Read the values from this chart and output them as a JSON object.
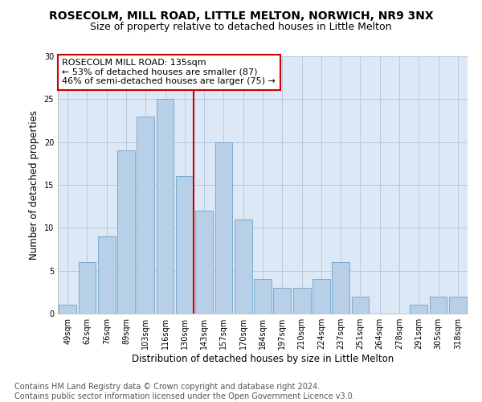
{
  "title": "ROSECOLM, MILL ROAD, LITTLE MELTON, NORWICH, NR9 3NX",
  "subtitle": "Size of property relative to detached houses in Little Melton",
  "xlabel": "Distribution of detached houses by size in Little Melton",
  "ylabel": "Number of detached properties",
  "footer_line1": "Contains HM Land Registry data © Crown copyright and database right 2024.",
  "footer_line2": "Contains public sector information licensed under the Open Government Licence v3.0.",
  "annotation_line1": "ROSECOLM MILL ROAD: 135sqm",
  "annotation_line2": "← 53% of detached houses are smaller (87)",
  "annotation_line3": "46% of semi-detached houses are larger (75) →",
  "bar_color": "#b8cfe8",
  "bar_edge_color": "#7aaad0",
  "vline_color": "#cc0000",
  "annotation_box_edge_color": "#cc0000",
  "categories": [
    "49sqm",
    "62sqm",
    "76sqm",
    "89sqm",
    "103sqm",
    "116sqm",
    "130sqm",
    "143sqm",
    "157sqm",
    "170sqm",
    "184sqm",
    "197sqm",
    "210sqm",
    "224sqm",
    "237sqm",
    "251sqm",
    "264sqm",
    "278sqm",
    "291sqm",
    "305sqm",
    "318sqm"
  ],
  "values": [
    1,
    6,
    9,
    19,
    23,
    25,
    16,
    12,
    20,
    11,
    4,
    3,
    3,
    4,
    6,
    2,
    0,
    0,
    1,
    2,
    2
  ],
  "ylim": [
    0,
    30
  ],
  "yticks": [
    0,
    5,
    10,
    15,
    20,
    25,
    30
  ],
  "vline_x_index": 6,
  "title_fontsize": 10,
  "subtitle_fontsize": 9,
  "axis_label_fontsize": 8.5,
  "tick_fontsize": 7,
  "footer_fontsize": 7,
  "annotation_fontsize": 8,
  "background_color": "#ffffff",
  "axes_bg_color": "#dce8f5",
  "grid_color": "#b0c4de"
}
